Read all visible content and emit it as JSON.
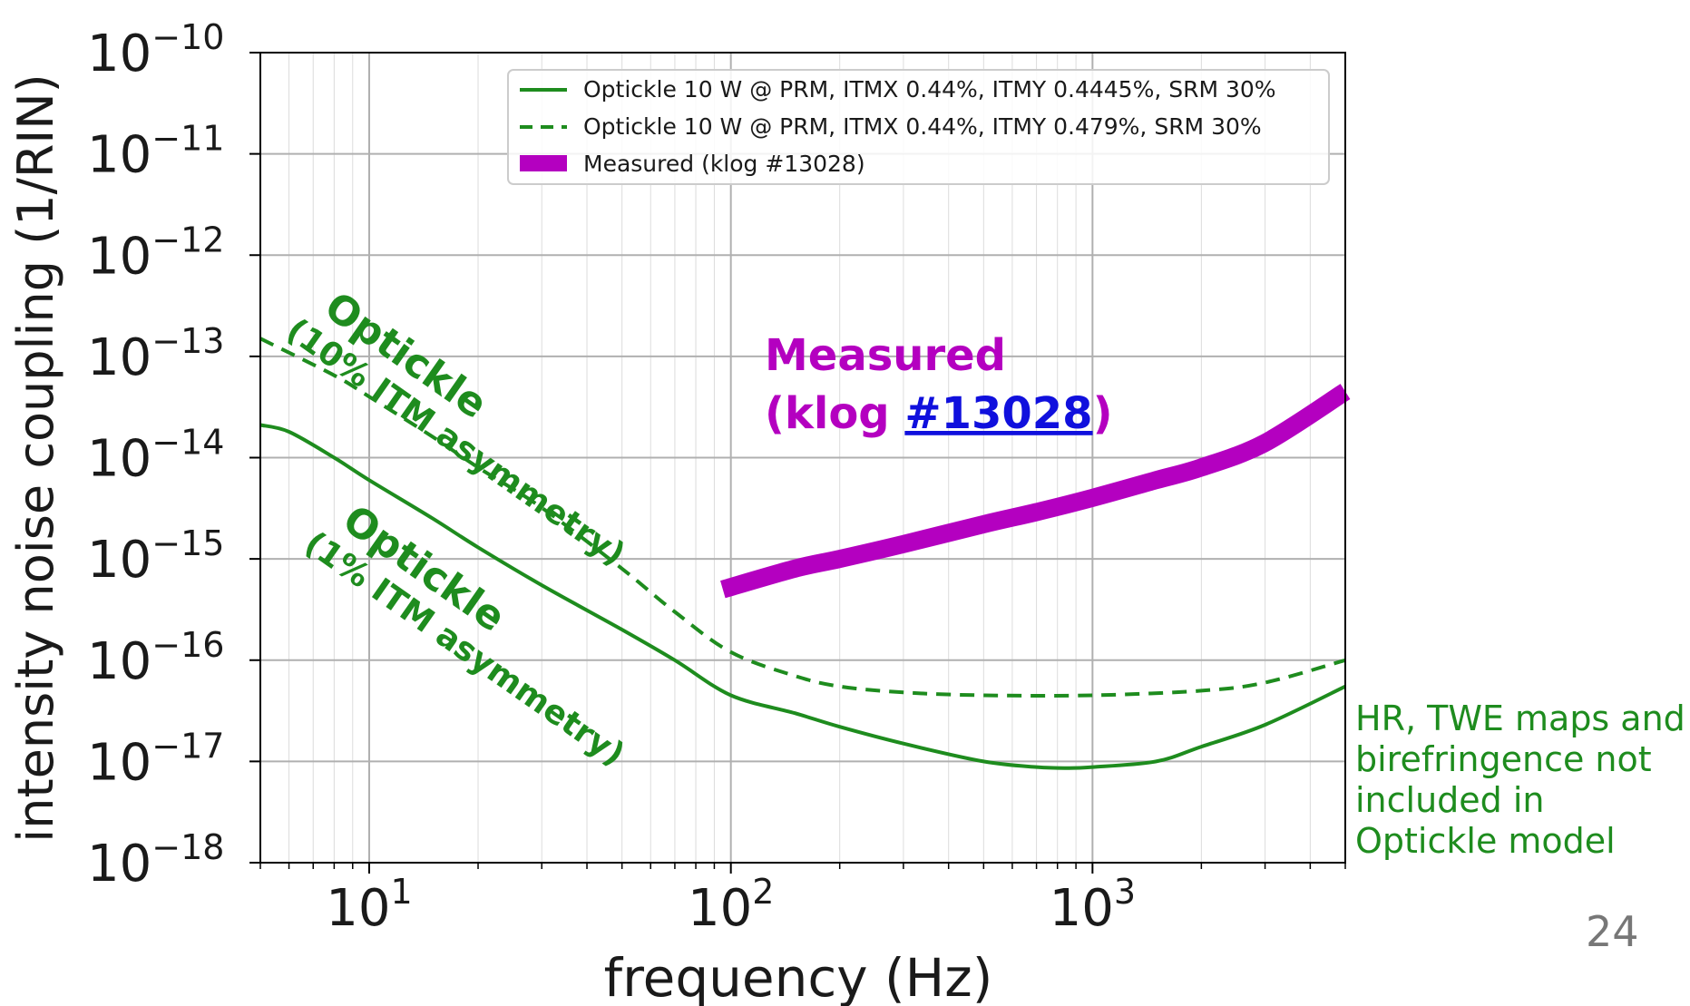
{
  "chart_data": {
    "type": "line",
    "xlabel": "frequency (Hz)",
    "ylabel": "intensity noise coupling (1/RIN)",
    "x_scale": "log",
    "y_scale": "log",
    "xlim": [
      5,
      5000
    ],
    "ylim": [
      1e-18,
      1e-10
    ],
    "grid": true,
    "legend_placement": "top-right",
    "x_ticks": [
      {
        "value": 10,
        "base": "10",
        "exp": "1"
      },
      {
        "value": 100,
        "base": "10",
        "exp": "2"
      },
      {
        "value": 1000,
        "base": "10",
        "exp": "3"
      }
    ],
    "y_ticks": [
      {
        "value": 1e-10,
        "base": "10",
        "exp": "−10"
      },
      {
        "value": 1e-11,
        "base": "10",
        "exp": "−11"
      },
      {
        "value": 1e-12,
        "base": "10",
        "exp": "−12"
      },
      {
        "value": 1e-13,
        "base": "10",
        "exp": "−13"
      },
      {
        "value": 1e-14,
        "base": "10",
        "exp": "−14"
      },
      {
        "value": 1e-15,
        "base": "10",
        "exp": "−15"
      },
      {
        "value": 1e-16,
        "base": "10",
        "exp": "−16"
      },
      {
        "value": 1e-17,
        "base": "10",
        "exp": "−17"
      },
      {
        "value": 1e-18,
        "base": "10",
        "exp": "−18"
      }
    ],
    "series": [
      {
        "name": "Optickle 10 W @ PRM, ITMX 0.44%, ITMY 0.4445%, SRM 30%",
        "style": "solid",
        "color": "#1e8c1e",
        "x": [
          5,
          6,
          8,
          10,
          15,
          20,
          30,
          50,
          70,
          100,
          150,
          200,
          300,
          500,
          700,
          850,
          1000,
          1500,
          2000,
          3000,
          5000
        ],
        "y": [
          2.1e-14,
          1.8e-14,
          1e-14,
          6e-15,
          2.5e-15,
          1.3e-15,
          5.5e-16,
          2e-16,
          1e-16,
          4.5e-17,
          3e-17,
          2.2e-17,
          1.5e-17,
          1e-17,
          8.8e-18,
          8.6e-18,
          8.8e-18,
          1e-17,
          1.4e-17,
          2.3e-17,
          5.5e-17
        ]
      },
      {
        "name": "Optickle 10 W @ PRM, ITMX 0.44%, ITMY 0.479%, SRM 30%",
        "style": "dashed",
        "color": "#1e8c1e",
        "x": [
          5,
          8,
          10,
          15,
          20,
          30,
          50,
          70,
          100,
          150,
          200,
          300,
          500,
          1000,
          2000,
          3000,
          5000
        ],
        "y": [
          1.5e-13,
          6.5e-14,
          4e-14,
          1.6e-14,
          8e-15,
          3.2e-15,
          8e-16,
          3e-16,
          1.2e-16,
          7e-17,
          5.5e-17,
          4.8e-17,
          4.5e-17,
          4.5e-17,
          5e-17,
          6e-17,
          1e-16
        ]
      },
      {
        "name": "Measured (klog #13028)",
        "style": "thick",
        "color": "#b400c0",
        "x": [
          95,
          150,
          200,
          300,
          500,
          700,
          1000,
          1500,
          2000,
          3000,
          5000
        ],
        "y": [
          5e-16,
          8e-16,
          1e-15,
          1.4e-15,
          2.2e-15,
          2.9e-15,
          4e-15,
          6e-15,
          8e-15,
          1.4e-14,
          4.5e-14
        ]
      }
    ],
    "annotations": {
      "optickle_10": {
        "line1": "Optickle",
        "line2": "(10% ITM asymmetry)"
      },
      "optickle_1": {
        "line1": "Optickle",
        "line2": "(1% ITM asymmetry)"
      },
      "measured": {
        "line1": "Measured",
        "prefix": "(klog ",
        "link": "#13028",
        "suffix": ")"
      }
    }
  },
  "side_note": "HR, TWE maps and birefringence not included in Optickle model",
  "page_number": "24"
}
